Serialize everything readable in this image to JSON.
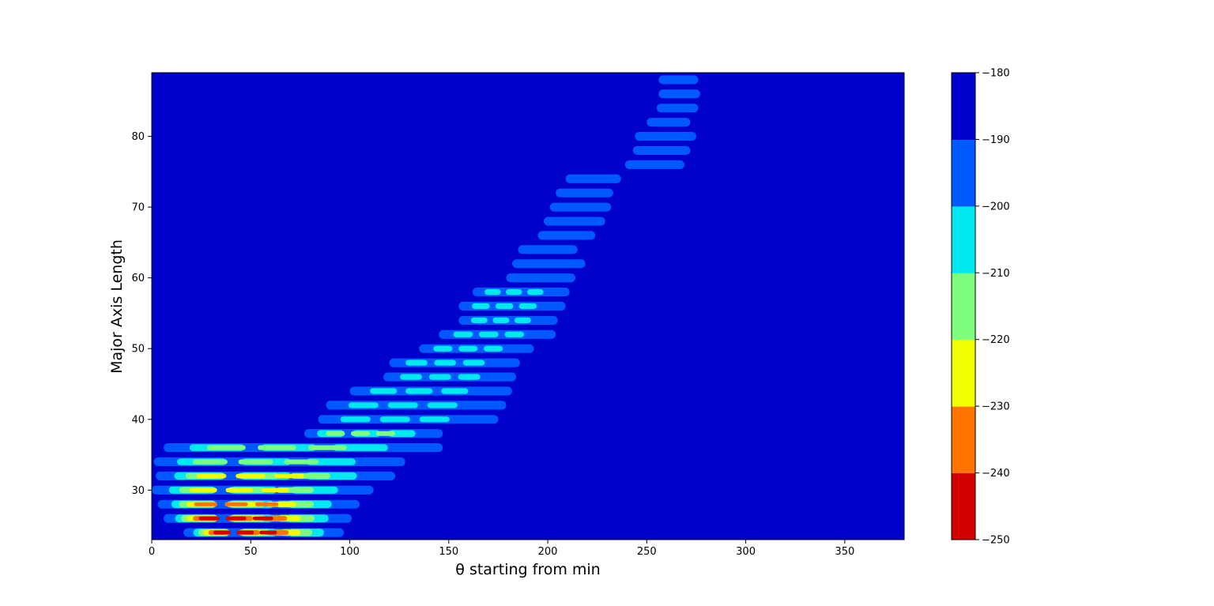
{
  "chart_data": {
    "type": "heatmap",
    "subtype": "filled-contour",
    "title": "",
    "xlabel": "θ starting from min",
    "ylabel": "Major Axis Length",
    "xlim": [
      0,
      380
    ],
    "ylim": [
      23,
      89
    ],
    "x_ticks": [
      0,
      50,
      100,
      150,
      200,
      250,
      300,
      350
    ],
    "y_ticks": [
      30,
      40,
      50,
      60,
      70,
      80
    ],
    "colorbar": {
      "levels": [
        -250,
        -240,
        -230,
        -220,
        -210,
        -200,
        -190,
        -180
      ],
      "tick_labels": [
        "−250",
        "−240",
        "−230",
        "−220",
        "−210",
        "−200",
        "−190",
        "−180"
      ],
      "colors": [
        "#d40000",
        "#ff7400",
        "#f2ff00",
        "#7dff7d",
        "#00e8f0",
        "#0058ff",
        "#0000cd"
      ],
      "background_level_color": "#0000cd"
    },
    "bands": [
      {
        "y": 24,
        "x_start": 16,
        "x_end": 97,
        "min_level": -250
      },
      {
        "y": 26,
        "x_start": 6,
        "x_end": 101,
        "min_level": -250
      },
      {
        "y": 28,
        "x_start": 3,
        "x_end": 105,
        "min_level": -240
      },
      {
        "y": 30,
        "x_start": 0,
        "x_end": 112,
        "min_level": -230
      },
      {
        "y": 32,
        "x_start": 2,
        "x_end": 123,
        "min_level": -230
      },
      {
        "y": 34,
        "x_start": 1,
        "x_end": 128,
        "min_level": -220
      },
      {
        "y": 36,
        "x_start": 6,
        "x_end": 147,
        "min_level": -220
      },
      {
        "y": 38,
        "x_start": 77,
        "x_end": 147,
        "min_level": -220
      },
      {
        "y": 40,
        "x_start": 84,
        "x_end": 175,
        "min_level": -210
      },
      {
        "y": 42,
        "x_start": 88,
        "x_end": 179,
        "min_level": -210
      },
      {
        "y": 44,
        "x_start": 100,
        "x_end": 182,
        "min_level": -210
      },
      {
        "y": 46,
        "x_start": 117,
        "x_end": 184,
        "min_level": -210
      },
      {
        "y": 48,
        "x_start": 120,
        "x_end": 186,
        "min_level": -210
      },
      {
        "y": 50,
        "x_start": 135,
        "x_end": 193,
        "min_level": -210
      },
      {
        "y": 52,
        "x_start": 145,
        "x_end": 204,
        "min_level": -210
      },
      {
        "y": 54,
        "x_start": 155,
        "x_end": 205,
        "min_level": -210
      },
      {
        "y": 56,
        "x_start": 155,
        "x_end": 209,
        "min_level": -210
      },
      {
        "y": 58,
        "x_start": 162,
        "x_end": 211,
        "min_level": -210
      },
      {
        "y": 60,
        "x_start": 179,
        "x_end": 214,
        "min_level": -200
      },
      {
        "y": 62,
        "x_start": 182,
        "x_end": 219,
        "min_level": -200
      },
      {
        "y": 64,
        "x_start": 185,
        "x_end": 215,
        "min_level": -200
      },
      {
        "y": 66,
        "x_start": 195,
        "x_end": 224,
        "min_level": -200
      },
      {
        "y": 68,
        "x_start": 198,
        "x_end": 229,
        "min_level": -200
      },
      {
        "y": 70,
        "x_start": 201,
        "x_end": 232,
        "min_level": -200
      },
      {
        "y": 72,
        "x_start": 204,
        "x_end": 233,
        "min_level": -200
      },
      {
        "y": 74,
        "x_start": 209,
        "x_end": 237,
        "min_level": -200
      },
      {
        "y": 76,
        "x_start": 239,
        "x_end": 269,
        "min_level": -200
      },
      {
        "y": 78,
        "x_start": 243,
        "x_end": 272,
        "min_level": -200
      },
      {
        "y": 80,
        "x_start": 244,
        "x_end": 275,
        "min_level": -200
      },
      {
        "y": 82,
        "x_start": 250,
        "x_end": 272,
        "min_level": -200
      },
      {
        "y": 84,
        "x_start": 255,
        "x_end": 276,
        "min_level": -200
      },
      {
        "y": 86,
        "x_start": 256,
        "x_end": 277,
        "min_level": -200
      },
      {
        "y": 88,
        "x_start": 256,
        "x_end": 276,
        "min_level": -200
      }
    ]
  }
}
